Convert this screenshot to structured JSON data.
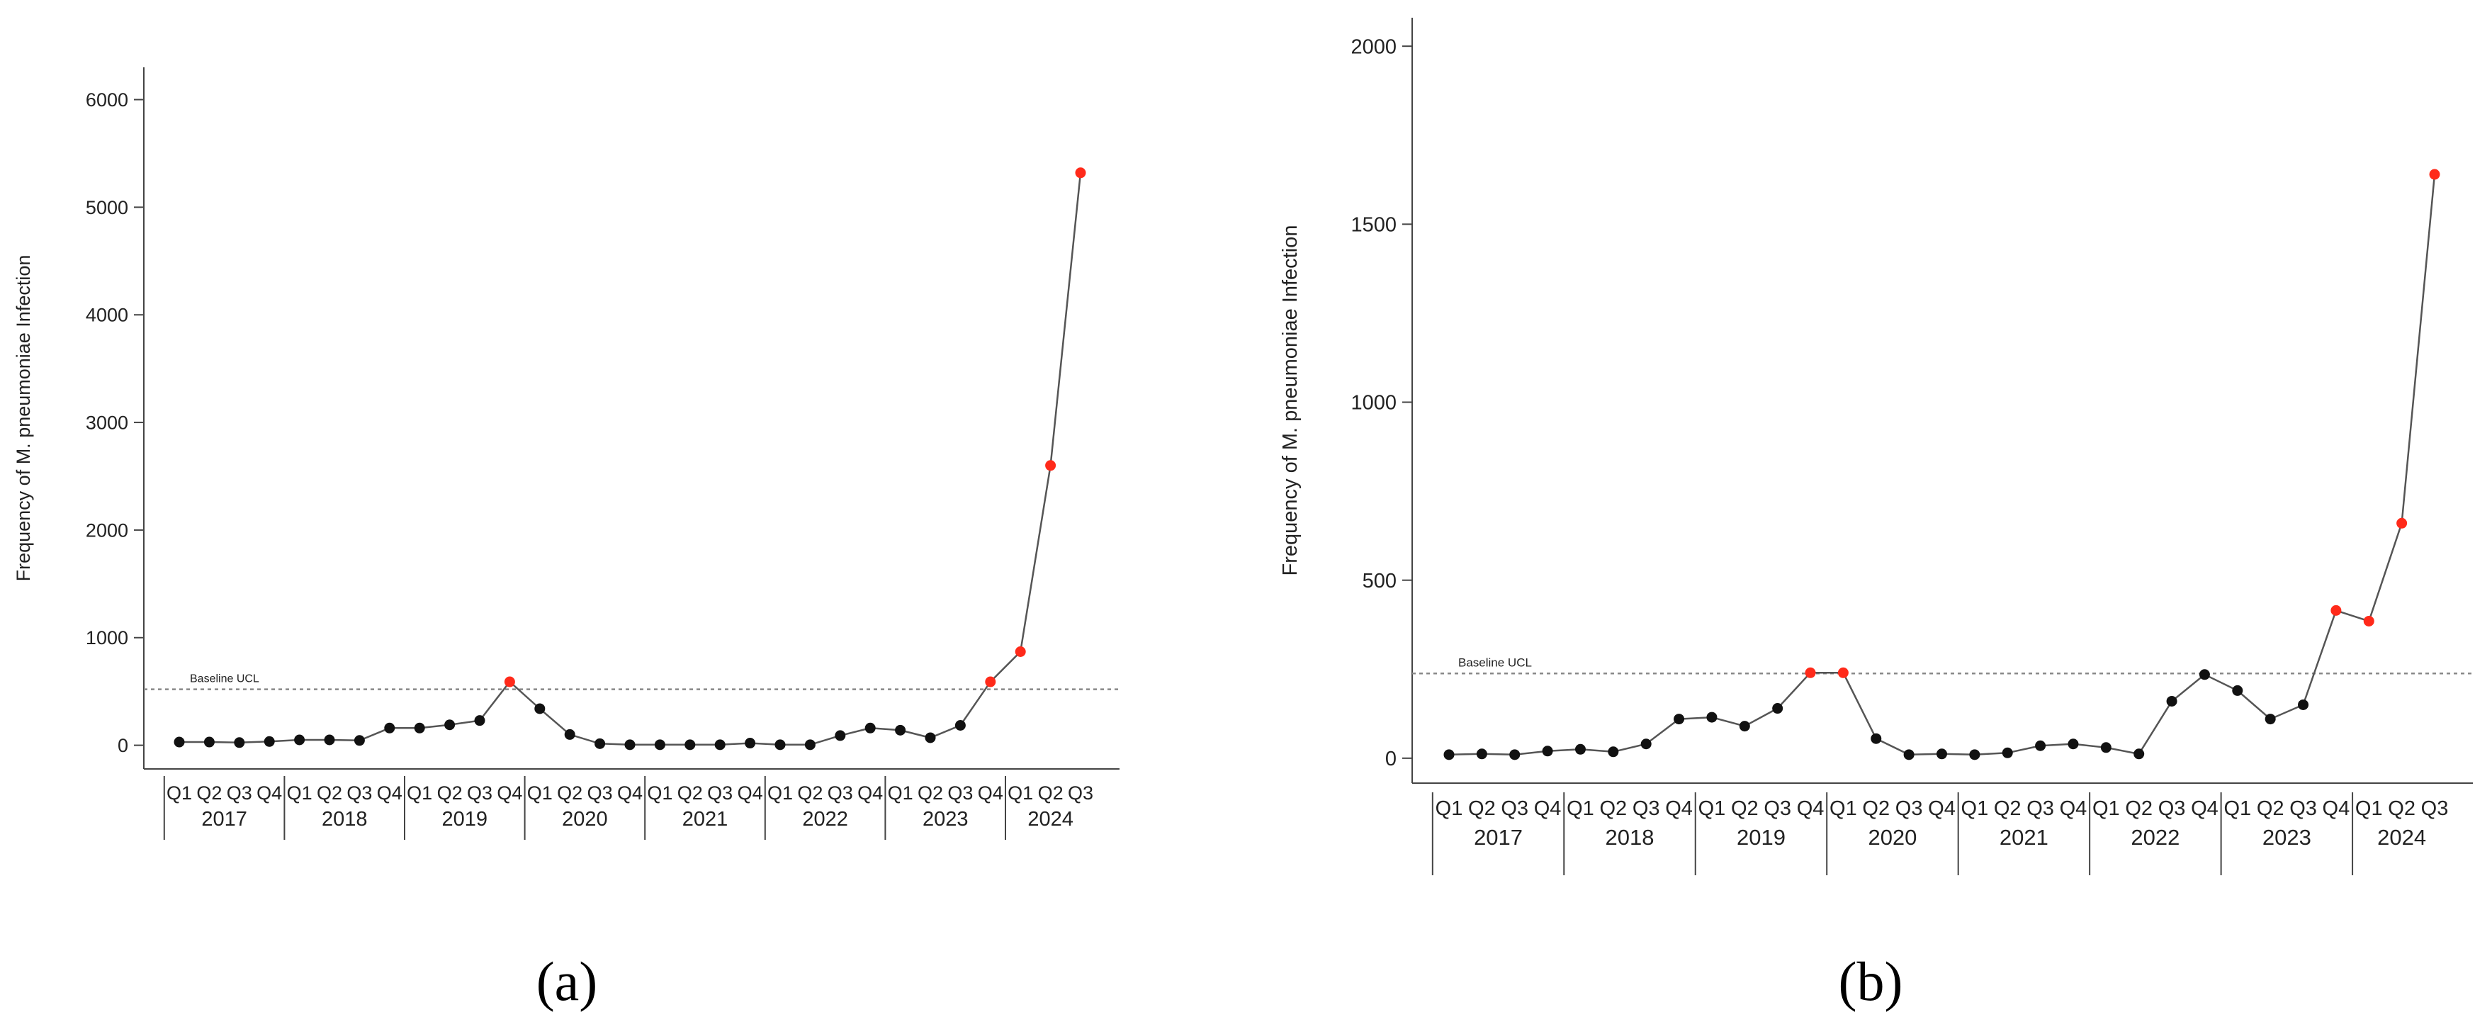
{
  "captions": [
    "(a)",
    "(b)"
  ],
  "chart_data": [
    {
      "type": "line",
      "title": "",
      "xlabel": "",
      "ylabel": "Frequency of M. pneumoniae Infection",
      "ylim": [
        -220,
        6300
      ],
      "yticks": [
        0,
        1000,
        2000,
        3000,
        4000,
        5000,
        6000
      ],
      "grid": false,
      "quarters": [
        "Q1",
        "Q2",
        "Q3",
        "Q4",
        "Q1",
        "Q2",
        "Q3",
        "Q4",
        "Q1",
        "Q2",
        "Q3",
        "Q4",
        "Q1",
        "Q2",
        "Q3",
        "Q4",
        "Q1",
        "Q2",
        "Q3",
        "Q4",
        "Q1",
        "Q2",
        "Q3",
        "Q4",
        "Q1",
        "Q2",
        "Q3",
        "Q4",
        "Q1",
        "Q2",
        "Q3"
      ],
      "years": [
        "2017",
        "2018",
        "2019",
        "2020",
        "2021",
        "2022",
        "2023",
        "2024"
      ],
      "values": [
        30,
        30,
        25,
        35,
        50,
        50,
        45,
        160,
        160,
        190,
        230,
        590,
        340,
        100,
        15,
        5,
        5,
        5,
        5,
        20,
        5,
        5,
        90,
        160,
        140,
        70,
        185,
        590,
        870,
        2600,
        5320
      ],
      "flagged": [
        false,
        false,
        false,
        false,
        false,
        false,
        false,
        false,
        false,
        false,
        false,
        true,
        false,
        false,
        false,
        false,
        false,
        false,
        false,
        false,
        false,
        false,
        false,
        false,
        false,
        false,
        false,
        true,
        true,
        true,
        true
      ],
      "reference_line": {
        "label": "Baseline UCL",
        "value": 520
      },
      "colors": {
        "normal": "#111111",
        "flagged": "#ff2a1a",
        "line": "#555555",
        "ucl": "#888888"
      }
    },
    {
      "type": "line",
      "title": "",
      "xlabel": "",
      "ylabel": "Frequency of M. pneumoniae Infection",
      "ylim": [
        -70,
        2080
      ],
      "yticks": [
        0,
        500,
        1000,
        1500,
        2000
      ],
      "grid": false,
      "quarters": [
        "Q1",
        "Q2",
        "Q3",
        "Q4",
        "Q1",
        "Q2",
        "Q3",
        "Q4",
        "Q1",
        "Q2",
        "Q3",
        "Q4",
        "Q1",
        "Q2",
        "Q3",
        "Q4",
        "Q1",
        "Q2",
        "Q3",
        "Q4",
        "Q1",
        "Q2",
        "Q3",
        "Q4",
        "Q1",
        "Q2",
        "Q3",
        "Q4",
        "Q1",
        "Q2",
        "Q3"
      ],
      "years": [
        "2017",
        "2018",
        "2019",
        "2020",
        "2021",
        "2022",
        "2023",
        "2024"
      ],
      "values": [
        10,
        12,
        10,
        20,
        25,
        18,
        40,
        110,
        115,
        90,
        140,
        240,
        240,
        55,
        10,
        12,
        10,
        15,
        35,
        40,
        30,
        12,
        160,
        235,
        190,
        110,
        150,
        415,
        385,
        660,
        1640
      ],
      "flagged": [
        false,
        false,
        false,
        false,
        false,
        false,
        false,
        false,
        false,
        false,
        false,
        true,
        true,
        false,
        false,
        false,
        false,
        false,
        false,
        false,
        false,
        false,
        false,
        false,
        false,
        false,
        false,
        true,
        true,
        true,
        true
      ],
      "reference_line": {
        "label": "Baseline UCL",
        "value": 238
      },
      "colors": {
        "normal": "#111111",
        "flagged": "#ff2a1a",
        "line": "#555555",
        "ucl": "#888888"
      }
    }
  ]
}
